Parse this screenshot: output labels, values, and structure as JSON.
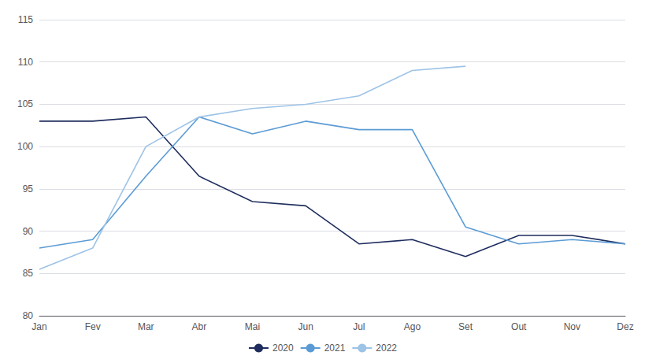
{
  "chart_data": {
    "type": "line",
    "categories": [
      "Jan",
      "Fev",
      "Mar",
      "Abr",
      "Mai",
      "Jun",
      "Jul",
      "Ago",
      "Set",
      "Out",
      "Nov",
      "Dez"
    ],
    "series": [
      {
        "name": "2020",
        "color": "#1f2d5e",
        "values": [
          103.0,
          103.0,
          103.5,
          96.5,
          93.5,
          93.0,
          88.5,
          89.0,
          87.0,
          89.5,
          89.5,
          88.5
        ]
      },
      {
        "name": "2021",
        "color": "#5b9bd5",
        "values": [
          88.0,
          89.0,
          96.5,
          103.5,
          101.5,
          103.0,
          102.0,
          102.0,
          90.5,
          88.5,
          89.0,
          88.5
        ]
      },
      {
        "name": "2022",
        "color": "#9dc3e6",
        "values": [
          85.5,
          88.0,
          100.0,
          103.5,
          104.5,
          105.0,
          106.0,
          109.0,
          109.5,
          null,
          null,
          null
        ]
      }
    ],
    "ylim": [
      80,
      115
    ],
    "yticks": [
      80,
      85,
      90,
      95,
      100,
      105,
      110,
      115
    ],
    "grid": true,
    "legend": "bottom"
  }
}
